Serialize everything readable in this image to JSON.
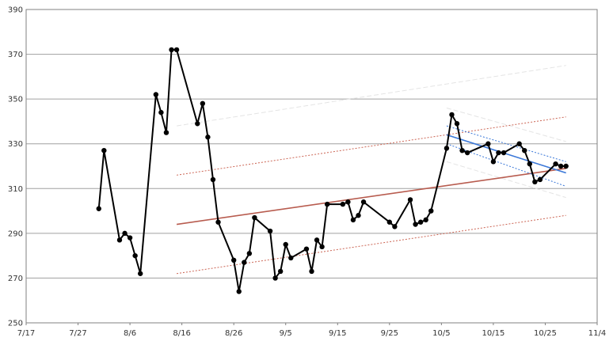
{
  "chart_data": {
    "type": "line",
    "x_axis": {
      "type": "date",
      "range": [
        "2023-07-17",
        "2023-11-04"
      ],
      "tick_labels": [
        "7/17",
        "7/27",
        "8/6",
        "8/16",
        "8/26",
        "9/5",
        "9/15",
        "9/25",
        "10/5",
        "10/15",
        "10/25",
        "11/4"
      ]
    },
    "y_axis": {
      "range": [
        250,
        390
      ],
      "tick_labels": [
        "250",
        "270",
        "290",
        "310",
        "330",
        "350",
        "370",
        "390"
      ]
    },
    "grid": {
      "horizontal": true,
      "vertical": false
    },
    "series": [
      {
        "style": "line-with-markers",
        "color": "#000000",
        "points": [
          [
            "2023-07-31",
            301
          ],
          [
            "2023-08-01",
            327
          ],
          [
            "2023-08-04",
            287
          ],
          [
            "2023-08-05",
            290
          ],
          [
            "2023-08-06",
            288
          ],
          [
            "2023-08-07",
            280
          ],
          [
            "2023-08-08",
            272
          ],
          [
            "2023-08-11",
            352
          ],
          [
            "2023-08-12",
            344
          ],
          [
            "2023-08-13",
            335
          ],
          [
            "2023-08-14",
            372
          ],
          [
            "2023-08-15",
            372
          ],
          [
            "2023-08-19",
            339
          ],
          [
            "2023-08-20",
            348
          ],
          [
            "2023-08-21",
            333
          ],
          [
            "2023-08-22",
            314
          ],
          [
            "2023-08-23",
            295
          ],
          [
            "2023-08-26",
            278
          ],
          [
            "2023-08-27",
            264
          ],
          [
            "2023-08-28",
            277
          ],
          [
            "2023-08-29",
            281
          ],
          [
            "2023-08-30",
            297
          ],
          [
            "2023-09-02",
            291
          ],
          [
            "2023-09-03",
            270
          ],
          [
            "2023-09-04",
            273
          ],
          [
            "2023-09-05",
            285
          ],
          [
            "2023-09-06",
            279
          ],
          [
            "2023-09-09",
            283
          ],
          [
            "2023-09-10",
            273
          ],
          [
            "2023-09-11",
            287
          ],
          [
            "2023-09-12",
            284
          ],
          [
            "2023-09-13",
            303
          ],
          [
            "2023-09-16",
            303
          ],
          [
            "2023-09-17",
            304
          ],
          [
            "2023-09-18",
            296
          ],
          [
            "2023-09-19",
            298
          ],
          [
            "2023-09-20",
            304
          ],
          [
            "2023-09-25",
            295
          ],
          [
            "2023-09-26",
            293
          ],
          [
            "2023-09-29",
            305
          ],
          [
            "2023-09-30",
            294
          ],
          [
            "2023-10-01",
            295
          ],
          [
            "2023-10-02",
            296
          ],
          [
            "2023-10-03",
            300
          ],
          [
            "2023-10-06",
            328
          ],
          [
            "2023-10-07",
            343
          ],
          [
            "2023-10-08",
            339
          ],
          [
            "2023-10-09",
            327
          ],
          [
            "2023-10-10",
            326
          ],
          [
            "2023-10-14",
            330
          ],
          [
            "2023-10-15",
            322
          ],
          [
            "2023-10-16",
            326
          ],
          [
            "2023-10-17",
            326
          ],
          [
            "2023-10-20",
            330
          ],
          [
            "2023-10-21",
            327
          ],
          [
            "2023-10-22",
            321
          ],
          [
            "2023-10-23",
            313
          ],
          [
            "2023-10-24",
            314
          ],
          [
            "2023-10-27",
            321
          ],
          [
            "2023-10-28",
            320
          ],
          [
            "2023-10-29",
            320
          ]
        ]
      },
      {
        "style": "trend-line",
        "color": "#b85c4f",
        "points": [
          [
            "2023-08-15",
            294
          ],
          [
            "2023-10-29",
            319
          ]
        ]
      },
      {
        "style": "channel-upper-dotted",
        "color": "#cc6655",
        "points": [
          [
            "2023-08-15",
            316
          ],
          [
            "2023-10-29",
            342
          ]
        ]
      },
      {
        "style": "channel-lower-dotted",
        "color": "#cc6655",
        "points": [
          [
            "2023-08-15",
            272
          ],
          [
            "2023-10-29",
            298
          ]
        ]
      },
      {
        "style": "trend-line",
        "color": "#3b78d8",
        "points": [
          [
            "2023-10-06",
            334
          ],
          [
            "2023-10-29",
            317
          ]
        ]
      },
      {
        "style": "channel-upper-dotted",
        "color": "#3b78d8",
        "points": [
          [
            "2023-10-06",
            338
          ],
          [
            "2023-10-29",
            322
          ]
        ]
      },
      {
        "style": "channel-lower-dotted",
        "color": "#3b78d8",
        "points": [
          [
            "2023-10-06",
            330
          ],
          [
            "2023-10-29",
            311
          ]
        ]
      }
    ],
    "faint_guides": [
      {
        "color": "#e4e4e4",
        "points": [
          [
            "2023-08-15",
            338
          ],
          [
            "2023-10-29",
            365
          ]
        ]
      },
      {
        "color": "#e4e4e4",
        "points": [
          [
            "2023-10-06",
            346
          ],
          [
            "2023-10-29",
            331
          ]
        ]
      },
      {
        "color": "#e4e4e4",
        "points": [
          [
            "2023-10-06",
            322
          ],
          [
            "2023-10-29",
            306
          ]
        ]
      }
    ],
    "title": "",
    "xlabel": "",
    "ylabel": ""
  }
}
